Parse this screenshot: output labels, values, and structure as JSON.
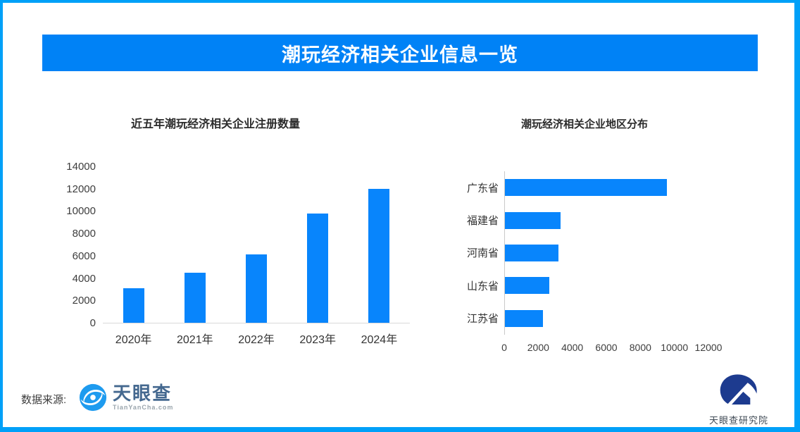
{
  "banner": {
    "title": "潮玩经济相关企业信息一览"
  },
  "colors": {
    "border": "#00A0F8",
    "banner_bg": "#0082F6",
    "bar": "#0885FC",
    "axis_text": "#3d3d3d",
    "axis_line": "#d9d9d9"
  },
  "chart_data": [
    {
      "type": "bar",
      "orientation": "vertical",
      "title": "近五年潮玩经济相关企业注册数量",
      "categories": [
        "2020年",
        "2021年",
        "2022年",
        "2023年",
        "2024年"
      ],
      "values": [
        3100,
        4500,
        6100,
        9750,
        12000
      ],
      "xlabel": "",
      "ylabel": "",
      "ylim": [
        0,
        14000
      ],
      "yticks": [
        0,
        2000,
        4000,
        6000,
        8000,
        10000,
        12000,
        14000
      ],
      "grid": false,
      "legend": "none",
      "bar_color": "#0885FC"
    },
    {
      "type": "bar",
      "orientation": "horizontal",
      "title": "潮玩经济相关企业地区分布",
      "categories": [
        "广东省",
        "福建省",
        "河南省",
        "山东省",
        "江苏省"
      ],
      "values": [
        9500,
        3250,
        3150,
        2600,
        2250
      ],
      "xlabel": "",
      "ylabel": "",
      "xlim": [
        0,
        12900
      ],
      "xticks": [
        0,
        2000,
        4000,
        6000,
        8000,
        10000,
        12000
      ],
      "grid": false,
      "legend": "none",
      "bar_color": "#0885FC"
    }
  ],
  "footer": {
    "source_label": "数据来源:",
    "tianyancha": {
      "name": "天眼查",
      "domain": "TianYanCha.com"
    },
    "institute": {
      "name": "天眼查研究院"
    }
  }
}
